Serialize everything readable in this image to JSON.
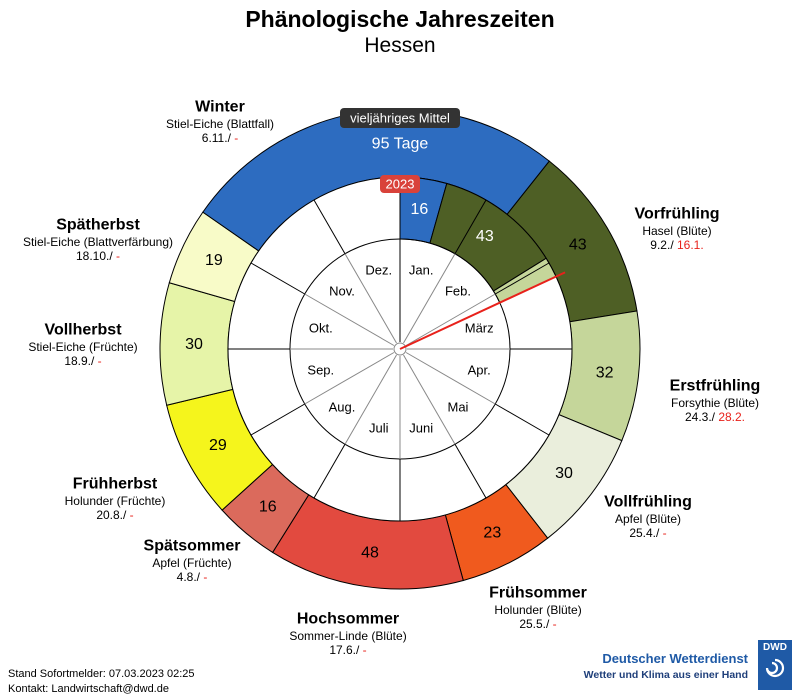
{
  "header": {
    "title": "Phänologische Jahreszeiten",
    "subtitle": "Hessen"
  },
  "colors": {
    "annual_line": "#e8211b",
    "current_red": "#e8211b",
    "label_badge_2023": "#d9423a",
    "badge_mean": "#333333"
  },
  "chart_data": {
    "type": "pie",
    "title": "Phänologische Jahreszeiten",
    "subtitle": "Hessen",
    "current_date_indicator": "07.03.",
    "outer_ring": {
      "label_badge": "vieljähriges Mittel",
      "winter_label": "95 Tage",
      "seasons": [
        {
          "key": "vorfruehling",
          "name": "Vorfrühling",
          "indicator": "Hasel (Blüte)",
          "mean_start": "9.2./",
          "current_start": "16.1.",
          "days": 43,
          "color": "#4e5f25"
        },
        {
          "key": "erstfruehling",
          "name": "Erstfrühling",
          "indicator": "Forsythie (Blüte)",
          "mean_start": "24.3./",
          "current_start": "28.2.",
          "days": 32,
          "color": "#c5d69a"
        },
        {
          "key": "vollfruehling",
          "name": "Vollfrühling",
          "indicator": "Apfel (Blüte)",
          "mean_start": "25.4./",
          "current_start": "-",
          "days": 30,
          "color": "#eaeedc"
        },
        {
          "key": "fruehsommer",
          "name": "Frühsommer",
          "indicator": "Holunder (Blüte)",
          "mean_start": "25.5./",
          "current_start": "-",
          "days": 23,
          "color": "#f05a1e"
        },
        {
          "key": "hochsommer",
          "name": "Hochsommer",
          "indicator": "Sommer-Linde (Blüte)",
          "mean_start": "17.6./",
          "current_start": "-",
          "days": 48,
          "color": "#e24a3f"
        },
        {
          "key": "spaetsommer",
          "name": "Spätsommer",
          "indicator": "Apfel (Früchte)",
          "mean_start": "4.8./",
          "current_start": "-",
          "days": 16,
          "color": "#db6a5c"
        },
        {
          "key": "fruehherbst",
          "name": "Frühherbst",
          "indicator": "Holunder (Früchte)",
          "mean_start": "20.8./",
          "current_start": "-",
          "days": 29,
          "color": "#f5f51c"
        },
        {
          "key": "vollherbst",
          "name": "Vollherbst",
          "indicator": "Stiel-Eiche (Früchte)",
          "mean_start": "18.9./",
          "current_start": "-",
          "days": 30,
          "color": "#e6f4a8"
        },
        {
          "key": "spaetherbst",
          "name": "Spätherbst",
          "indicator": "Stiel-Eiche (Blattverfärbung)",
          "mean_start": "18.10./",
          "current_start": "-",
          "days": 19,
          "color": "#f8fbc8"
        },
        {
          "key": "winter",
          "name": "Winter",
          "indicator": "Stiel-Eiche (Blattfall)",
          "mean_start": "6.11./",
          "current_start": "-",
          "days": 95,
          "color": "#2d6cc0"
        }
      ]
    },
    "current_year": {
      "label_badge": "2023",
      "segments": [
        {
          "label": "16",
          "days": 16,
          "color": "#2d6cc0"
        },
        {
          "label": "43",
          "days": 43,
          "color": "#4e5f25"
        },
        {
          "label": "",
          "days": 7,
          "color": "#c5d69a"
        }
      ]
    },
    "months": [
      "Jan.",
      "Feb.",
      "März",
      "Apr.",
      "Mai",
      "Juni",
      "Juli",
      "Aug.",
      "Sep.",
      "Okt.",
      "Nov.",
      "Dez."
    ]
  },
  "footer": {
    "stand": "Stand Sofortmelder: 07.03.2023 02:25",
    "kontakt": "Kontakt: Landwirtschaft@dwd.de"
  },
  "logo": {
    "brand": "Deutscher Wetterdienst",
    "tagline": "Wetter und Klima aus einer Hand",
    "abbr": "DWD"
  }
}
